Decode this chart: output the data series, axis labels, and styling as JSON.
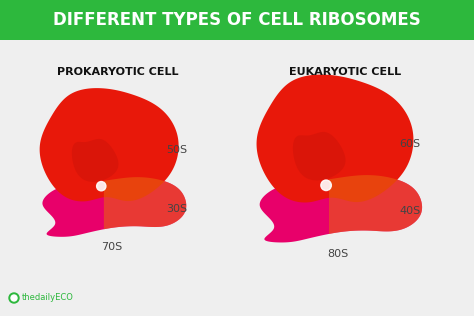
{
  "title": "DIFFERENT TYPES OF CELL RIBOSOMES",
  "title_bg": "#2db83d",
  "title_color": "#ffffff",
  "bg_color": "#efefef",
  "prokaryotic_label": "PROKARYOTIC CELL",
  "eukaryotic_label": "EUKARYOTIC CELL",
  "prok_large": "50S",
  "prok_small": "30S",
  "prok_total": "70S",
  "euk_large": "60S",
  "euk_small": "40S",
  "euk_total": "80S",
  "logo_text": "thedailyECO",
  "red_color": "#e8180a",
  "red_dark": "#c01008",
  "red_light": "#f04030",
  "pink_color": "#e8006a",
  "orange_color": "#e86010",
  "label_color": "#444444",
  "logo_color": "#2db83d"
}
